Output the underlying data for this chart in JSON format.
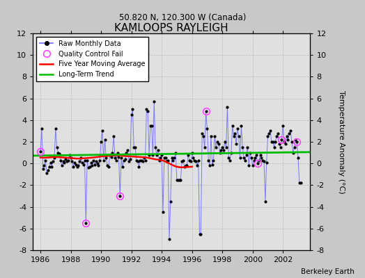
{
  "title": "KAMLOOPS RAYLEIGH",
  "subtitle": "50.820 N, 120.300 W (Canada)",
  "ylabel": "Temperature Anomaly (°C)",
  "credit": "Berkeley Earth",
  "xlim": [
    1985.5,
    2003.8
  ],
  "ylim": [
    -8,
    12
  ],
  "yticks": [
    -8,
    -6,
    -4,
    -2,
    0,
    2,
    4,
    6,
    8,
    10,
    12
  ],
  "xticks": [
    1986,
    1988,
    1990,
    1992,
    1994,
    1996,
    1998,
    2000,
    2002
  ],
  "bg_color": "#c8c8c8",
  "plot_bg_color": "#e0e0e0",
  "raw_line_color": "#6666ff",
  "raw_marker_color": "#000000",
  "moving_avg_color": "#ff0000",
  "trend_color": "#00bb00",
  "qc_fail_color": "#ff44ff",
  "raw_data": [
    [
      1986.0,
      1.1
    ],
    [
      1986.083,
      3.2
    ],
    [
      1986.167,
      -0.5
    ],
    [
      1986.25,
      -0.2
    ],
    [
      1986.333,
      0.3
    ],
    [
      1986.417,
      -0.9
    ],
    [
      1986.5,
      -0.6
    ],
    [
      1986.583,
      -0.3
    ],
    [
      1986.667,
      0.1
    ],
    [
      1986.75,
      -0.3
    ],
    [
      1986.833,
      0.2
    ],
    [
      1986.917,
      0.5
    ],
    [
      1987.0,
      3.2
    ],
    [
      1987.083,
      1.5
    ],
    [
      1987.167,
      1.0
    ],
    [
      1987.25,
      0.9
    ],
    [
      1987.333,
      0.3
    ],
    [
      1987.417,
      -0.2
    ],
    [
      1987.5,
      0.2
    ],
    [
      1987.583,
      0.1
    ],
    [
      1987.667,
      0.4
    ],
    [
      1987.75,
      0.2
    ],
    [
      1987.833,
      0.3
    ],
    [
      1987.917,
      0.8
    ],
    [
      1988.0,
      0.5
    ],
    [
      1988.083,
      0.2
    ],
    [
      1988.167,
      -0.3
    ],
    [
      1988.25,
      0.1
    ],
    [
      1988.333,
      -0.1
    ],
    [
      1988.417,
      -0.3
    ],
    [
      1988.5,
      -0.2
    ],
    [
      1988.583,
      0.2
    ],
    [
      1988.667,
      0.5
    ],
    [
      1988.75,
      0.1
    ],
    [
      1988.833,
      -0.1
    ],
    [
      1988.917,
      0.3
    ],
    [
      1989.0,
      -5.5
    ],
    [
      1989.083,
      0.3
    ],
    [
      1989.167,
      -0.4
    ],
    [
      1989.25,
      -0.3
    ],
    [
      1989.333,
      0.1
    ],
    [
      1989.417,
      -0.2
    ],
    [
      1989.5,
      0.3
    ],
    [
      1989.583,
      -0.1
    ],
    [
      1989.667,
      0.2
    ],
    [
      1989.75,
      0.0
    ],
    [
      1989.833,
      -0.2
    ],
    [
      1989.917,
      0.3
    ],
    [
      1990.0,
      2.0
    ],
    [
      1990.083,
      3.0
    ],
    [
      1990.167,
      0.3
    ],
    [
      1990.25,
      2.2
    ],
    [
      1990.333,
      0.5
    ],
    [
      1990.417,
      -0.2
    ],
    [
      1990.5,
      -0.3
    ],
    [
      1990.583,
      0.8
    ],
    [
      1990.667,
      0.6
    ],
    [
      1990.75,
      1.0
    ],
    [
      1990.833,
      2.5
    ],
    [
      1990.917,
      0.5
    ],
    [
      1991.0,
      0.3
    ],
    [
      1991.083,
      1.0
    ],
    [
      1991.167,
      0.6
    ],
    [
      1991.25,
      -3.0
    ],
    [
      1991.333,
      0.5
    ],
    [
      1991.417,
      -0.3
    ],
    [
      1991.5,
      0.3
    ],
    [
      1991.583,
      0.4
    ],
    [
      1991.667,
      1.0
    ],
    [
      1991.75,
      1.2
    ],
    [
      1991.833,
      0.2
    ],
    [
      1991.917,
      0.4
    ],
    [
      1992.0,
      4.5
    ],
    [
      1992.083,
      5.0
    ],
    [
      1992.167,
      1.5
    ],
    [
      1992.25,
      1.5
    ],
    [
      1992.333,
      0.3
    ],
    [
      1992.417,
      0.2
    ],
    [
      1992.5,
      -0.3
    ],
    [
      1992.583,
      0.3
    ],
    [
      1992.667,
      0.3
    ],
    [
      1992.75,
      0.2
    ],
    [
      1992.833,
      0.5
    ],
    [
      1992.917,
      0.3
    ],
    [
      1993.0,
      5.0
    ],
    [
      1993.083,
      4.8
    ],
    [
      1993.167,
      0.8
    ],
    [
      1993.25,
      3.5
    ],
    [
      1993.333,
      3.5
    ],
    [
      1993.417,
      0.8
    ],
    [
      1993.5,
      5.7
    ],
    [
      1993.583,
      1.5
    ],
    [
      1993.667,
      0.8
    ],
    [
      1993.75,
      1.2
    ],
    [
      1993.833,
      0.3
    ],
    [
      1993.917,
      0.5
    ],
    [
      1994.0,
      0.8
    ],
    [
      1994.083,
      -4.5
    ],
    [
      1994.167,
      0.5
    ],
    [
      1994.25,
      0.5
    ],
    [
      1994.333,
      0.2
    ],
    [
      1994.417,
      0.3
    ],
    [
      1994.5,
      -7.0
    ],
    [
      1994.583,
      -3.5
    ],
    [
      1994.667,
      0.5
    ],
    [
      1994.75,
      0.3
    ],
    [
      1994.833,
      0.5
    ],
    [
      1994.917,
      1.0
    ],
    [
      1995.0,
      -1.5
    ],
    [
      1995.083,
      -1.5
    ],
    [
      1995.167,
      -1.5
    ],
    [
      1995.25,
      -1.5
    ],
    [
      1995.333,
      0.2
    ],
    [
      1995.417,
      0.3
    ],
    [
      1995.5,
      -0.3
    ],
    [
      1995.583,
      -0.2
    ],
    [
      1995.667,
      -0.2
    ],
    [
      1995.75,
      0.8
    ],
    [
      1995.833,
      0.3
    ],
    [
      1995.917,
      0.2
    ],
    [
      1996.0,
      1.0
    ],
    [
      1996.083,
      0.5
    ],
    [
      1996.167,
      0.3
    ],
    [
      1996.25,
      0.2
    ],
    [
      1996.333,
      -0.2
    ],
    [
      1996.417,
      0.3
    ],
    [
      1996.5,
      -6.5
    ],
    [
      1996.583,
      -6.5
    ],
    [
      1996.667,
      2.8
    ],
    [
      1996.75,
      2.5
    ],
    [
      1996.833,
      1.5
    ],
    [
      1996.917,
      4.8
    ],
    [
      1997.0,
      3.2
    ],
    [
      1997.083,
      0.3
    ],
    [
      1997.167,
      -0.2
    ],
    [
      1997.25,
      2.5
    ],
    [
      1997.333,
      -0.1
    ],
    [
      1997.417,
      0.3
    ],
    [
      1997.5,
      2.5
    ],
    [
      1997.583,
      1.5
    ],
    [
      1997.667,
      2.0
    ],
    [
      1997.75,
      1.8
    ],
    [
      1997.833,
      1.0
    ],
    [
      1997.917,
      1.2
    ],
    [
      1998.0,
      1.5
    ],
    [
      1998.083,
      1.2
    ],
    [
      1998.167,
      2.0
    ],
    [
      1998.25,
      1.5
    ],
    [
      1998.333,
      5.2
    ],
    [
      1998.417,
      0.5
    ],
    [
      1998.5,
      0.3
    ],
    [
      1998.583,
      1.0
    ],
    [
      1998.667,
      3.5
    ],
    [
      1998.75,
      2.5
    ],
    [
      1998.833,
      2.8
    ],
    [
      1998.917,
      1.8
    ],
    [
      1999.0,
      3.2
    ],
    [
      1999.083,
      2.5
    ],
    [
      1999.167,
      0.5
    ],
    [
      1999.25,
      3.5
    ],
    [
      1999.333,
      1.5
    ],
    [
      1999.417,
      0.5
    ],
    [
      1999.5,
      0.3
    ],
    [
      1999.583,
      0.8
    ],
    [
      1999.667,
      1.5
    ],
    [
      1999.75,
      -0.2
    ],
    [
      1999.833,
      1.0
    ],
    [
      1999.917,
      0.5
    ],
    [
      2000.0,
      -0.2
    ],
    [
      2000.083,
      0.3
    ],
    [
      2000.167,
      0.5
    ],
    [
      2000.25,
      0.8
    ],
    [
      2000.333,
      0.0
    ],
    [
      2000.417,
      0.3
    ],
    [
      2000.5,
      0.8
    ],
    [
      2000.583,
      0.5
    ],
    [
      2000.667,
      0.3
    ],
    [
      2000.75,
      0.2
    ],
    [
      2000.833,
      -3.5
    ],
    [
      2000.917,
      0.1
    ],
    [
      2001.0,
      2.5
    ],
    [
      2001.083,
      2.8
    ],
    [
      2001.167,
      3.0
    ],
    [
      2001.25,
      2.0
    ],
    [
      2001.333,
      2.0
    ],
    [
      2001.417,
      1.5
    ],
    [
      2001.5,
      2.0
    ],
    [
      2001.583,
      2.5
    ],
    [
      2001.667,
      2.8
    ],
    [
      2001.75,
      1.8
    ],
    [
      2001.833,
      1.5
    ],
    [
      2001.917,
      2.2
    ],
    [
      2002.0,
      3.5
    ],
    [
      2002.083,
      2.0
    ],
    [
      2002.167,
      1.8
    ],
    [
      2002.25,
      2.5
    ],
    [
      2002.333,
      2.2
    ],
    [
      2002.417,
      2.8
    ],
    [
      2002.5,
      3.0
    ],
    [
      2002.583,
      2.0
    ],
    [
      2002.667,
      1.0
    ],
    [
      2002.75,
      1.5
    ],
    [
      2002.833,
      2.2
    ],
    [
      2002.917,
      2.0
    ],
    [
      2003.0,
      0.5
    ],
    [
      2003.083,
      -1.8
    ],
    [
      2003.167,
      -1.8
    ]
  ],
  "qc_fail_points": [
    [
      1986.0,
      1.1
    ],
    [
      1991.25,
      -3.0
    ],
    [
      1989.0,
      -5.5
    ],
    [
      1996.917,
      4.8
    ],
    [
      2000.333,
      0.0
    ],
    [
      2001.917,
      2.2
    ],
    [
      2002.917,
      2.0
    ]
  ],
  "moving_avg_x": [
    1986.0,
    1986.5,
    1987.0,
    1987.5,
    1988.0,
    1988.5,
    1989.0,
    1989.5,
    1990.0,
    1990.5,
    1991.0,
    1991.5,
    1992.0,
    1992.5,
    1993.0,
    1993.5,
    1994.0,
    1994.5,
    1995.0,
    1995.5,
    1996.0
  ],
  "moving_avg_y": [
    0.55,
    0.55,
    0.6,
    0.55,
    0.5,
    0.45,
    0.5,
    0.55,
    0.65,
    0.7,
    0.75,
    0.7,
    0.65,
    0.6,
    0.55,
    0.4,
    0.3,
    0.0,
    -0.3,
    -0.35,
    -0.3
  ],
  "trend_x": [
    1985.5,
    2003.8
  ],
  "trend_y": [
    0.72,
    1.05
  ]
}
